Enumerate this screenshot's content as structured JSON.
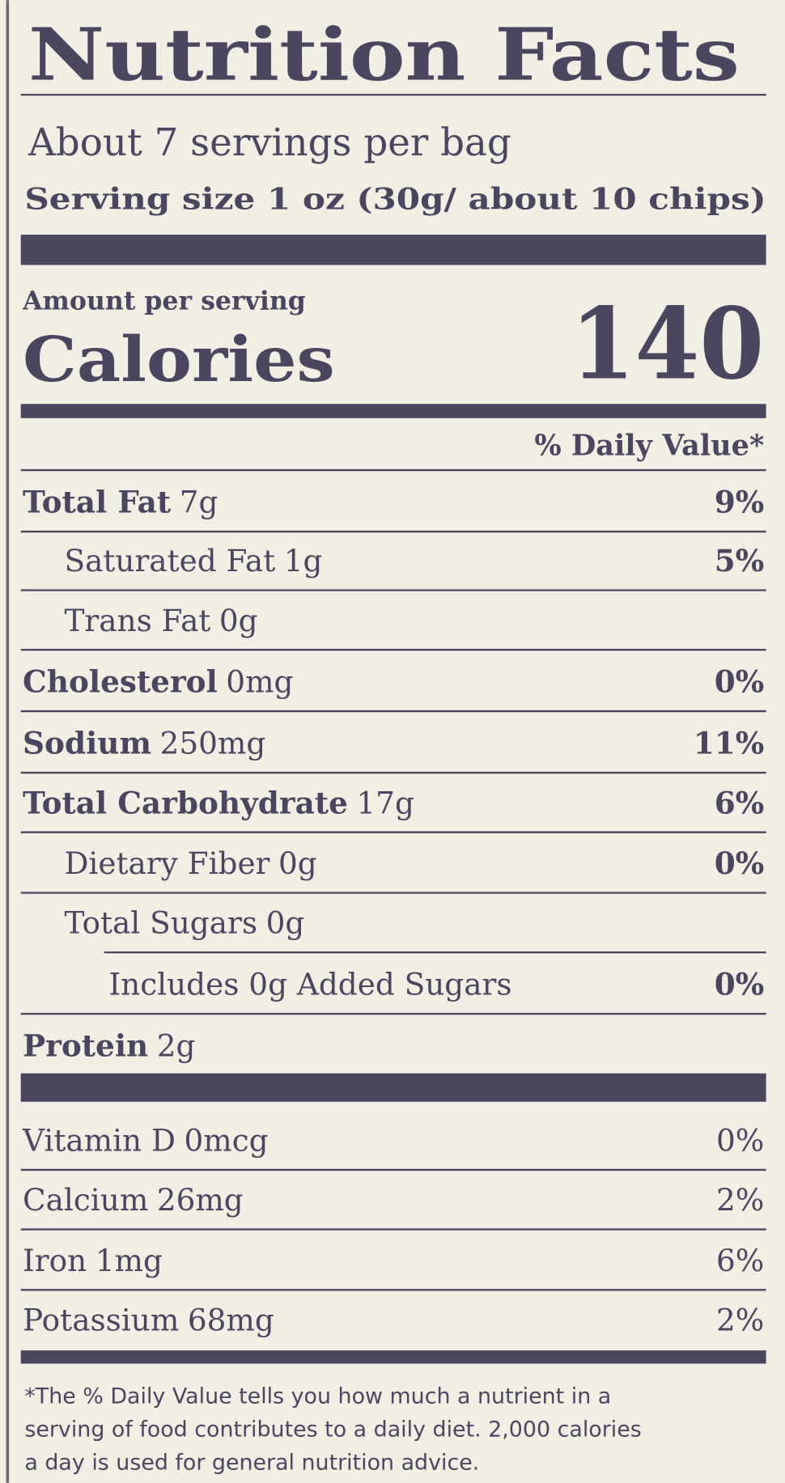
{
  "header": {
    "title": "Nutrition Facts",
    "servings": "About 7 servings per bag",
    "serving_size": "Serving size 1 oz (30g/ about 10 chips)"
  },
  "calories": {
    "amount_label": "Amount per serving",
    "label": "Calories",
    "value": "140"
  },
  "daily_value_header": "% Daily Value*",
  "nutrients": [
    {
      "name": "Total Fat",
      "amount": "7g",
      "dv": "9%"
    },
    {
      "name": "Saturated Fat",
      "amount": "1g",
      "dv": "5%"
    },
    {
      "name": "Trans Fat",
      "amount": "0g"
    },
    {
      "name": "Cholesterol",
      "amount": "0mg",
      "dv": "0%"
    },
    {
      "name": "Sodium",
      "amount": "250mg",
      "dv": "11%"
    },
    {
      "name": "Total Carbohydrate",
      "amount": "17g",
      "dv": "6%"
    },
    {
      "name": "Dietary Fiber",
      "amount": "0g",
      "dv": "0%"
    },
    {
      "name": "Total Sugars",
      "amount": "0g"
    },
    {
      "name": "Includes 0g Added Sugars",
      "dv": "0%"
    },
    {
      "name": "Protein",
      "amount": "2g"
    }
  ],
  "vitamins": [
    {
      "name": "Vitamin D",
      "amount": "0mcg",
      "dv": "0%"
    },
    {
      "name": "Calcium",
      "amount": "26mg",
      "dv": "2%"
    },
    {
      "name": "Iron",
      "amount": "1mg",
      "dv": "6%"
    },
    {
      "name": "Potassium",
      "amount": "68mg",
      "dv": "2%"
    }
  ],
  "footnote": [
    "*The % Daily Value tells you how much a nutrient in a",
    "serving of food contributes to a daily diet. 2,000 calories",
    "a day is used for general nutrition advice."
  ]
}
